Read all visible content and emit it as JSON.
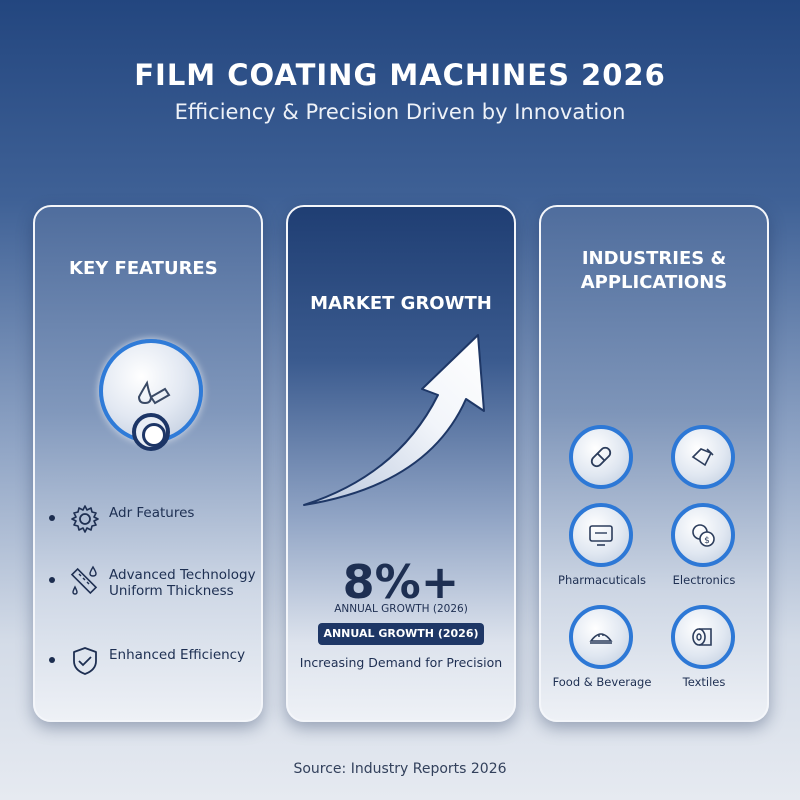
{
  "header": {
    "title": "FILM COATING MACHINES 2026",
    "subtitle": "Efficiency & Precision Driven by Innovation"
  },
  "key_features": {
    "title": "KEY FEATURES",
    "items": [
      {
        "label": "Adr Features",
        "icon": "gear-icon"
      },
      {
        "label": "Advanced Technology\nUniform Thickness",
        "icon": "ruler-droplet-icon"
      },
      {
        "label": "Enhanced Efficiency",
        "icon": "shield-check-icon"
      }
    ]
  },
  "market_growth": {
    "title": "MARKET GROWTH",
    "value": "8%+",
    "label": "ANNUAL GROWTH (2026)",
    "badge": "ANNUAL GROWTH (2026)",
    "description": "Increasing Demand for Precision"
  },
  "industries": {
    "title": "INDUSTRIES &\nAPPLICATIONS",
    "items": [
      {
        "label": "",
        "icon": "pill-icon"
      },
      {
        "label": "",
        "icon": "film-roll-icon"
      },
      {
        "label": "Pharmacuticals",
        "icon": "display-icon"
      },
      {
        "label": "Electronics",
        "icon": "coins-icon"
      },
      {
        "label": "Food & Beverage",
        "icon": "food-icon"
      },
      {
        "label": "Textiles",
        "icon": "textile-roll-icon"
      }
    ]
  },
  "footer": {
    "source": "Source: Industry Reports 2026"
  },
  "colors": {
    "accent": "#2d78d6",
    "dark_navy": "#1e3766"
  }
}
